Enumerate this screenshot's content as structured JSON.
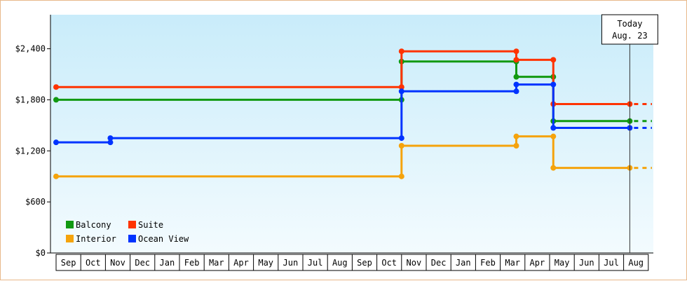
{
  "chart_data": {
    "type": "line",
    "step": true,
    "title": "",
    "xlabel": "",
    "ylabel": "",
    "y_ticks": [
      0,
      600,
      1200,
      1800,
      2400
    ],
    "y_tick_labels": [
      "$0",
      "$600",
      "$1,200",
      "$1,800",
      "$2,400"
    ],
    "ylim": [
      0,
      2800
    ],
    "x_ticks": [
      "Sep",
      "Oct",
      "Nov",
      "Dec",
      "Jan",
      "Feb",
      "Mar",
      "Apr",
      "May",
      "Jun",
      "Jul",
      "Aug",
      "Sep",
      "Oct",
      "Nov",
      "Dec",
      "Jan",
      "Feb",
      "Mar",
      "Apr",
      "May",
      "Jun",
      "Jul",
      "Aug"
    ],
    "xlim_months": [
      0,
      24
    ],
    "grid": false,
    "legend_position": "bottom-left",
    "today": {
      "line1": "Today",
      "line2": "Aug. 23",
      "month": 23.25
    },
    "series": [
      {
        "name": "Balcony",
        "color": "#119911",
        "points": [
          [
            0,
            1800
          ],
          [
            14.0,
            1800
          ],
          [
            14.0,
            2250
          ],
          [
            18.65,
            2250
          ],
          [
            18.65,
            2070
          ],
          [
            20.15,
            2070
          ],
          [
            20.15,
            1550
          ],
          [
            23.25,
            1550
          ]
        ],
        "extend_dashed": true
      },
      {
        "name": "Suite",
        "color": "#ff3300",
        "points": [
          [
            0,
            1950
          ],
          [
            14.0,
            1950
          ],
          [
            14.0,
            2370
          ],
          [
            18.65,
            2370
          ],
          [
            18.65,
            2270
          ],
          [
            20.15,
            2270
          ],
          [
            20.15,
            1750
          ],
          [
            23.25,
            1750
          ]
        ],
        "extend_dashed": true
      },
      {
        "name": "Interior",
        "color": "#f5a30c",
        "points": [
          [
            0,
            900
          ],
          [
            14.0,
            900
          ],
          [
            14.0,
            1260
          ],
          [
            18.65,
            1260
          ],
          [
            18.65,
            1370
          ],
          [
            20.15,
            1370
          ],
          [
            20.15,
            1000
          ],
          [
            23.25,
            1000
          ]
        ],
        "extend_dashed": true
      },
      {
        "name": "Ocean View",
        "color": "#0033ff",
        "points": [
          [
            0,
            1300
          ],
          [
            2.2,
            1300
          ],
          [
            2.2,
            1350
          ],
          [
            14.0,
            1350
          ],
          [
            14.0,
            1900
          ],
          [
            18.65,
            1900
          ],
          [
            18.65,
            1980
          ],
          [
            20.15,
            1980
          ],
          [
            20.15,
            1470
          ],
          [
            23.25,
            1470
          ]
        ],
        "extend_dashed": true
      }
    ]
  }
}
